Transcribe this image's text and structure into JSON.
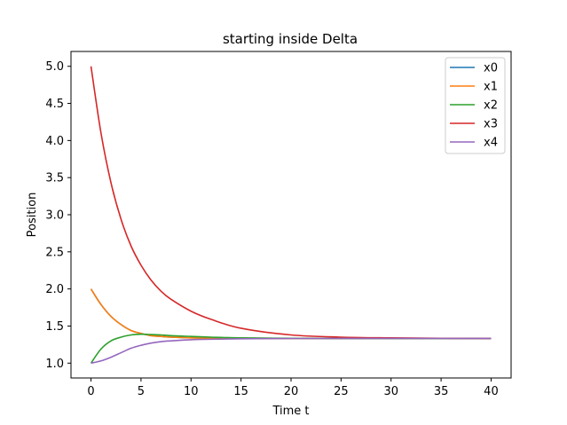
{
  "chart_data": {
    "type": "line",
    "title": "starting inside Delta",
    "xlabel": "Time t",
    "ylabel": "Position",
    "xlim": [
      -2,
      42
    ],
    "ylim": [
      0.8,
      5.2
    ],
    "xticks": [
      0,
      5,
      10,
      15,
      20,
      25,
      30,
      35,
      40
    ],
    "xtick_labels": [
      "0",
      "5",
      "10",
      "15",
      "20",
      "25",
      "30",
      "35",
      "40"
    ],
    "yticks": [
      1.0,
      1.5,
      2.0,
      2.5,
      3.0,
      3.5,
      4.0,
      4.5,
      5.0
    ],
    "ytick_labels": [
      "1.0",
      "1.5",
      "2.0",
      "2.5",
      "3.0",
      "3.5",
      "4.0",
      "4.5",
      "5.0"
    ],
    "grid": false,
    "legend_position": "top-right",
    "x": [
      0,
      1,
      2,
      3,
      4,
      5,
      6,
      7,
      8,
      10,
      12,
      15,
      20,
      25,
      30,
      35,
      40
    ],
    "series": [
      {
        "name": "x0",
        "color": "#1f77b4",
        "values": [
          2.0,
          1.79,
          1.63,
          1.52,
          1.44,
          1.4,
          1.37,
          1.36,
          1.35,
          1.34,
          1.335,
          1.333,
          1.333,
          1.333,
          1.333,
          1.333,
          1.333
        ]
      },
      {
        "name": "x1",
        "color": "#ff7f0e",
        "values": [
          2.0,
          1.79,
          1.63,
          1.52,
          1.44,
          1.4,
          1.37,
          1.36,
          1.35,
          1.34,
          1.335,
          1.333,
          1.333,
          1.333,
          1.333,
          1.333,
          1.333
        ]
      },
      {
        "name": "x2",
        "color": "#2ca02c",
        "values": [
          1.0,
          1.19,
          1.3,
          1.35,
          1.38,
          1.39,
          1.385,
          1.38,
          1.37,
          1.36,
          1.35,
          1.34,
          1.335,
          1.333,
          1.333,
          1.333,
          1.333
        ]
      },
      {
        "name": "x3",
        "color": "#d62728",
        "values": [
          5.0,
          4.1,
          3.43,
          2.94,
          2.58,
          2.32,
          2.12,
          1.97,
          1.86,
          1.7,
          1.59,
          1.47,
          1.38,
          1.35,
          1.34,
          1.335,
          1.333
        ]
      },
      {
        "name": "x4",
        "color": "#9467bd",
        "values": [
          1.0,
          1.03,
          1.08,
          1.14,
          1.2,
          1.24,
          1.27,
          1.29,
          1.3,
          1.315,
          1.322,
          1.328,
          1.332,
          1.333,
          1.333,
          1.333,
          1.333
        ]
      }
    ]
  }
}
